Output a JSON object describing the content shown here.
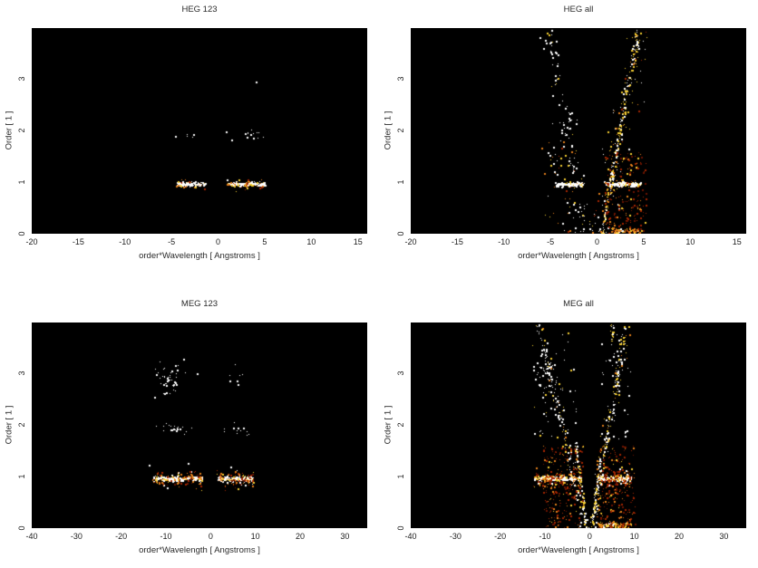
{
  "palette": {
    "white": "#ffffff",
    "yellow": "#f5ce30",
    "gold": "#ffd96a",
    "orange": "#e37f1b",
    "red": "#a42500",
    "darkred": "#6b1300",
    "plot_bg": "#000000",
    "page_bg": "#ffffff"
  },
  "chart_data": [
    {
      "id": "heg-123",
      "type": "scatter",
      "title": "HEG 123",
      "xlabel": "order*Wavelength [ Angstroms ]",
      "ylabel": "Order [ 1 ]",
      "xlim": [
        -20,
        16
      ],
      "ylim": [
        0,
        3.98
      ],
      "xticks": [
        -20,
        -15,
        -10,
        -5,
        0,
        5,
        10,
        15
      ],
      "yticks": [
        0,
        1,
        2,
        3
      ],
      "grid": false,
      "legend": false,
      "seed": 11,
      "features": [
        {
          "type": "streak",
          "y": 0.97,
          "sy": 0.018,
          "x": [
            -4.5,
            -1.4
          ],
          "count": 130,
          "colors": [
            [
              "white",
              0.84
            ],
            [
              "yellow",
              0.1
            ],
            [
              "orange",
              0.06
            ]
          ]
        },
        {
          "type": "streak",
          "y": 0.95,
          "sy": 0.05,
          "x": [
            -4.5,
            -1.4
          ],
          "count": 20,
          "colors": [
            [
              "yellow",
              0.35
            ],
            [
              "orange",
              0.35
            ],
            [
              "red",
              0.2
            ],
            [
              "white",
              0.1
            ]
          ]
        },
        {
          "type": "streak",
          "y": 0.97,
          "sy": 0.018,
          "x": [
            0.9,
            5.0
          ],
          "count": 175,
          "colors": [
            [
              "white",
              0.84
            ],
            [
              "yellow",
              0.1
            ],
            [
              "orange",
              0.06
            ]
          ]
        },
        {
          "type": "streak",
          "y": 0.94,
          "sy": 0.055,
          "x": [
            0.9,
            5.0
          ],
          "count": 30,
          "colors": [
            [
              "yellow",
              0.3
            ],
            [
              "orange",
              0.35
            ],
            [
              "red",
              0.25
            ],
            [
              "white",
              0.1
            ]
          ]
        },
        {
          "type": "cluster",
          "cx": 2.95,
          "cy": 1.92,
          "sx": 1.0,
          "sy": 0.04,
          "count": 13,
          "colors": [
            [
              "white",
              1
            ]
          ]
        },
        {
          "type": "cluster",
          "cx": -3.5,
          "cy": 1.91,
          "sx": 0.45,
          "sy": 0.03,
          "count": 4,
          "colors": [
            [
              "white",
              1
            ]
          ]
        },
        {
          "type": "dots",
          "color": "white",
          "points": [
            [
              4.05,
              2.95
            ],
            [
              -4.6,
              1.9
            ],
            [
              1.4,
              1.83
            ],
            [
              0.9,
              1.05
            ]
          ]
        }
      ]
    },
    {
      "id": "heg-all",
      "type": "scatter",
      "title": "HEG all",
      "xlabel": "order*Wavelength [ Angstroms ]",
      "ylabel": "Order [ 1 ]",
      "xlim": [
        -20,
        16
      ],
      "ylim": [
        0,
        3.98
      ],
      "xticks": [
        -20,
        -15,
        -10,
        -5,
        0,
        5,
        10,
        15
      ],
      "yticks": [
        0,
        1,
        2,
        3
      ],
      "grid": false,
      "legend": false,
      "seed": 22,
      "features": [
        {
          "type": "streak",
          "y": 0.97,
          "sy": 0.018,
          "x": [
            -4.5,
            -1.4
          ],
          "count": 130,
          "colors": [
            [
              "white",
              0.8
            ],
            [
              "yellow",
              0.14
            ],
            [
              "orange",
              0.06
            ]
          ]
        },
        {
          "type": "streak",
          "y": 0.97,
          "sy": 0.018,
          "x": [
            0.9,
            4.7
          ],
          "count": 165,
          "colors": [
            [
              "white",
              0.8
            ],
            [
              "yellow",
              0.14
            ],
            [
              "orange",
              0.06
            ]
          ]
        },
        {
          "type": "band",
          "x0": -1.35,
          "x1": -5.3,
          "yr": [
            0,
            3.95
          ],
          "w": 0.5,
          "count": 110,
          "colors": [
            [
              "white",
              0.85
            ],
            [
              "yellow",
              0.15
            ]
          ]
        },
        {
          "type": "band",
          "x0": 0.45,
          "x1": 4.3,
          "yr": [
            0,
            3.95
          ],
          "w": 0.16,
          "count": 210,
          "colors": [
            [
              "white",
              0.5
            ],
            [
              "yellow",
              0.42
            ],
            [
              "orange",
              0.08
            ]
          ]
        },
        {
          "type": "band",
          "x0": 0.45,
          "x1": 4.3,
          "yr": [
            0,
            3.95
          ],
          "w": 0.75,
          "count": 130,
          "colors": [
            [
              "white",
              0.45
            ],
            [
              "yellow",
              0.3
            ],
            [
              "orange",
              0.15
            ],
            [
              "red",
              0.1
            ]
          ]
        },
        {
          "type": "cluster",
          "cx": 4.25,
          "cy": 3.75,
          "sx": 0.14,
          "sy": 0.18,
          "count": 30,
          "colors": [
            [
              "yellow",
              0.65
            ],
            [
              "white",
              0.35
            ]
          ]
        },
        {
          "type": "diffuse",
          "x": [
            0.8,
            5.2
          ],
          "y": [
            0,
            1.6
          ],
          "count": 210,
          "colors": [
            [
              "red",
              0.42
            ],
            [
              "darkred",
              0.28
            ],
            [
              "orange",
              0.2
            ],
            [
              "yellow",
              0.1
            ]
          ]
        },
        {
          "type": "diffuse",
          "x": [
            -6,
            -1.6
          ],
          "y": [
            0,
            1.9
          ],
          "count": 55,
          "colors": [
            [
              "orange",
              0.3
            ],
            [
              "yellow",
              0.25
            ],
            [
              "white",
              0.3
            ],
            [
              "red",
              0.15
            ]
          ]
        },
        {
          "type": "streak",
          "y": 0.06,
          "sy": 0.03,
          "x": [
            1.4,
            4.7
          ],
          "count": 70,
          "colors": [
            [
              "orange",
              0.45
            ],
            [
              "yellow",
              0.3
            ],
            [
              "red",
              0.15
            ],
            [
              "white",
              0.1
            ]
          ]
        },
        {
          "type": "dots",
          "color": "white",
          "points": [
            [
              -3.4,
              1.92
            ],
            [
              2.6,
              1.93
            ]
          ]
        }
      ]
    },
    {
      "id": "meg-123",
      "type": "scatter",
      "title": "MEG 123",
      "xlabel": "order*Wavelength [ Angstroms ]",
      "ylabel": "Order [ 1 ]",
      "xlim": [
        -40,
        35
      ],
      "ylim": [
        0,
        3.98
      ],
      "xticks": [
        -40,
        -30,
        -20,
        -10,
        0,
        10,
        20,
        30
      ],
      "yticks": [
        0,
        1,
        2,
        3
      ],
      "grid": false,
      "legend": false,
      "seed": 33,
      "features": [
        {
          "type": "streak",
          "y": 0.97,
          "sy": 0.022,
          "x": [
            -12.8,
            -2.0
          ],
          "count": 230,
          "colors": [
            [
              "white",
              0.8
            ],
            [
              "yellow",
              0.13
            ],
            [
              "orange",
              0.07
            ]
          ]
        },
        {
          "type": "streak",
          "y": 0.95,
          "sy": 0.08,
          "x": [
            -13.2,
            -2.0
          ],
          "count": 130,
          "colors": [
            [
              "orange",
              0.3
            ],
            [
              "red",
              0.27
            ],
            [
              "yellow",
              0.2
            ],
            [
              "darkred",
              0.13
            ],
            [
              "white",
              0.1
            ]
          ]
        },
        {
          "type": "streak",
          "y": 0.97,
          "sy": 0.022,
          "x": [
            1.6,
            9.3
          ],
          "count": 175,
          "colors": [
            [
              "white",
              0.8
            ],
            [
              "yellow",
              0.13
            ],
            [
              "orange",
              0.07
            ]
          ]
        },
        {
          "type": "streak",
          "y": 0.95,
          "sy": 0.08,
          "x": [
            1.3,
            9.5
          ],
          "count": 100,
          "colors": [
            [
              "orange",
              0.3
            ],
            [
              "red",
              0.27
            ],
            [
              "yellow",
              0.2
            ],
            [
              "darkred",
              0.13
            ],
            [
              "white",
              0.1
            ]
          ]
        },
        {
          "type": "cluster",
          "cx": -7.8,
          "cy": 1.94,
          "sx": 1.9,
          "sy": 0.05,
          "count": 20,
          "colors": [
            [
              "white",
              1
            ]
          ]
        },
        {
          "type": "cluster",
          "cx": 5.6,
          "cy": 1.93,
          "sx": 1.6,
          "sy": 0.06,
          "count": 12,
          "colors": [
            [
              "white",
              1
            ]
          ]
        },
        {
          "type": "cluster",
          "cx": -9.4,
          "cy": 2.93,
          "sx": 1.4,
          "sy": 0.17,
          "count": 46,
          "colors": [
            [
              "white",
              1
            ]
          ]
        },
        {
          "type": "cluster",
          "cx": 5.8,
          "cy": 2.92,
          "sx": 1.1,
          "sy": 0.1,
          "count": 7,
          "colors": [
            [
              "white",
              1
            ]
          ]
        },
        {
          "type": "dots",
          "color": "white",
          "points": [
            [
              -13.9,
              1.22
            ],
            [
              -5.1,
              1.27
            ],
            [
              4.4,
              1.2
            ],
            [
              -12.6,
              2.55
            ],
            [
              -6.1,
              3.28
            ],
            [
              -3.2,
              3.0
            ]
          ]
        }
      ]
    },
    {
      "id": "meg-all",
      "type": "scatter",
      "title": "MEG all",
      "xlabel": "order*Wavelength [ Angstroms ]",
      "ylabel": "Order [ 1 ]",
      "xlim": [
        -40,
        35
      ],
      "ylim": [
        0,
        3.98
      ],
      "xticks": [
        -40,
        -30,
        -20,
        -10,
        0,
        10,
        20,
        30
      ],
      "yticks": [
        0,
        1,
        2,
        3
      ],
      "grid": false,
      "legend": false,
      "seed": 44,
      "features": [
        {
          "type": "streak",
          "y": 0.97,
          "sy": 0.022,
          "x": [
            -12.5,
            -2.0
          ],
          "count": 230,
          "colors": [
            [
              "white",
              0.78
            ],
            [
              "yellow",
              0.15
            ],
            [
              "orange",
              0.07
            ]
          ]
        },
        {
          "type": "streak",
          "y": 0.95,
          "sy": 0.08,
          "x": [
            -12.8,
            -2.0
          ],
          "count": 120,
          "colors": [
            [
              "orange",
              0.3
            ],
            [
              "red",
              0.27
            ],
            [
              "yellow",
              0.2
            ],
            [
              "darkred",
              0.13
            ],
            [
              "white",
              0.1
            ]
          ]
        },
        {
          "type": "streak",
          "y": 0.97,
          "sy": 0.022,
          "x": [
            1.6,
            9.2
          ],
          "count": 180,
          "colors": [
            [
              "white",
              0.78
            ],
            [
              "yellow",
              0.15
            ],
            [
              "orange",
              0.07
            ]
          ]
        },
        {
          "type": "streak",
          "y": 0.95,
          "sy": 0.08,
          "x": [
            1.4,
            9.4
          ],
          "count": 100,
          "colors": [
            [
              "orange",
              0.3
            ],
            [
              "red",
              0.27
            ],
            [
              "yellow",
              0.2
            ],
            [
              "darkred",
              0.13
            ],
            [
              "white",
              0.1
            ]
          ]
        },
        {
          "type": "band",
          "x0": -0.95,
          "x1": -11.3,
          "yr": [
            0,
            3.95
          ],
          "w": 0.55,
          "count": 150,
          "colors": [
            [
              "white",
              0.8
            ],
            [
              "yellow",
              0.15
            ],
            [
              "orange",
              0.05
            ]
          ]
        },
        {
          "type": "band",
          "x0": -0.85,
          "x1": -3.3,
          "yr": [
            0,
            1.7
          ],
          "w": 0.13,
          "count": 90,
          "colors": [
            [
              "white",
              0.55
            ],
            [
              "yellow",
              0.45
            ]
          ]
        },
        {
          "type": "band",
          "x0": 0.4,
          "x1": 8.1,
          "yr": [
            0,
            3.95
          ],
          "w": 0.5,
          "count": 190,
          "colors": [
            [
              "white",
              0.6
            ],
            [
              "yellow",
              0.3
            ],
            [
              "orange",
              0.1
            ]
          ]
        },
        {
          "type": "band",
          "x0": 0.35,
          "x1": 2.4,
          "yr": [
            0,
            1.5
          ],
          "w": 0.13,
          "count": 80,
          "colors": [
            [
              "white",
              0.55
            ],
            [
              "yellow",
              0.45
            ]
          ]
        },
        {
          "type": "cluster",
          "cx": -9.4,
          "cy": 2.93,
          "sx": 1.5,
          "sy": 0.18,
          "count": 35,
          "colors": [
            [
              "white",
              1
            ]
          ]
        },
        {
          "type": "cluster",
          "cx": 4.9,
          "cy": 3.78,
          "sx": 0.25,
          "sy": 0.16,
          "count": 22,
          "colors": [
            [
              "yellow",
              0.7
            ],
            [
              "white",
              0.3
            ]
          ]
        },
        {
          "type": "diffuse",
          "x": [
            -10.5,
            -1.5
          ],
          "y": [
            0,
            1.6
          ],
          "count": 240,
          "colors": [
            [
              "red",
              0.4
            ],
            [
              "darkred",
              0.3
            ],
            [
              "orange",
              0.2
            ],
            [
              "yellow",
              0.1
            ]
          ]
        },
        {
          "type": "diffuse",
          "x": [
            1.5,
            10.2
          ],
          "y": [
            0,
            1.6
          ],
          "count": 260,
          "colors": [
            [
              "red",
              0.4
            ],
            [
              "darkred",
              0.28
            ],
            [
              "orange",
              0.22
            ],
            [
              "yellow",
              0.1
            ]
          ]
        },
        {
          "type": "diffuse",
          "x": [
            -13,
            -2.5
          ],
          "y": [
            1.7,
            3.9
          ],
          "count": 55,
          "colors": [
            [
              "white",
              0.8
            ],
            [
              "yellow",
              0.2
            ]
          ]
        },
        {
          "type": "diffuse",
          "x": [
            2.2,
            9.6
          ],
          "y": [
            1.7,
            3.9
          ],
          "count": 45,
          "colors": [
            [
              "white",
              0.7
            ],
            [
              "yellow",
              0.3
            ]
          ]
        },
        {
          "type": "streak",
          "y": 0.07,
          "sy": 0.035,
          "x": [
            1.8,
            9.0
          ],
          "count": 120,
          "colors": [
            [
              "orange",
              0.38
            ],
            [
              "yellow",
              0.27
            ],
            [
              "red",
              0.2
            ],
            [
              "white",
              0.15
            ]
          ]
        }
      ]
    }
  ]
}
